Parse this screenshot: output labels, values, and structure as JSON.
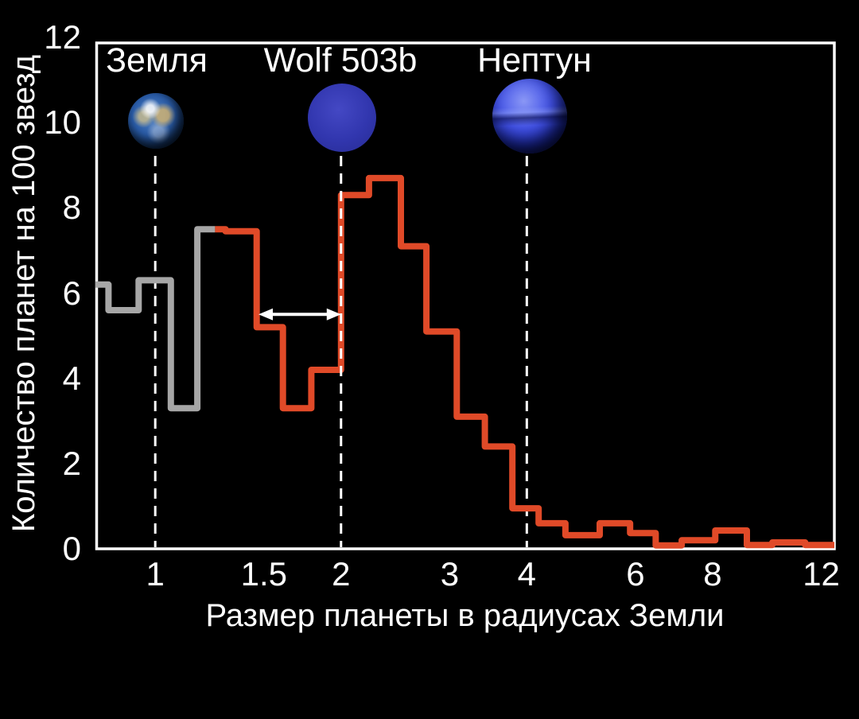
{
  "figure_background": "#000000",
  "chart_data": {
    "type": "bar",
    "subtype": "step-histogram",
    "xlabel": "Размер планеты в радиусах Земли",
    "ylabel": "Количество планет на 100 звезд",
    "xscale": "log",
    "xlim": [
      0.8,
      12.6
    ],
    "ylim": [
      0,
      12
    ],
    "grid": false,
    "x_tick_values": [
      1,
      1.5,
      2,
      3,
      4,
      6,
      8,
      12
    ],
    "x_tick_labels": [
      "1",
      "1.5",
      "2",
      "3",
      "4",
      "6",
      "8",
      "12"
    ],
    "y_tick_values": [
      0,
      2,
      4,
      6,
      8,
      10,
      12
    ],
    "y_tick_labels": [
      "0",
      "2",
      "4",
      "6",
      "8",
      "10",
      "12"
    ],
    "colors": {
      "small_planet_series": "#a6a6a6",
      "large_planet_series": "#e04a28",
      "axis": "#ffffff",
      "dashed_line": "#ffffff",
      "arrow": "#ffffff"
    },
    "series_split_radius": 1.25,
    "bins": [
      {
        "lo": 0.8,
        "hi": 0.84,
        "n": 6.2,
        "series": "gray"
      },
      {
        "lo": 0.84,
        "hi": 0.94,
        "n": 5.6,
        "series": "gray"
      },
      {
        "lo": 0.94,
        "hi": 1.06,
        "n": 6.3,
        "series": "gray"
      },
      {
        "lo": 1.06,
        "hi": 1.17,
        "n": 3.3,
        "series": "gray"
      },
      {
        "lo": 1.17,
        "hi": 1.25,
        "n": 7.5,
        "series": "gray"
      },
      {
        "lo": 1.25,
        "hi": 1.3,
        "n": 7.5,
        "series": "red"
      },
      {
        "lo": 1.3,
        "hi": 1.46,
        "n": 7.45,
        "series": "red"
      },
      {
        "lo": 1.46,
        "hi": 1.61,
        "n": 5.2,
        "series": "red"
      },
      {
        "lo": 1.61,
        "hi": 1.79,
        "n": 3.3,
        "series": "red"
      },
      {
        "lo": 1.79,
        "hi": 2.0,
        "n": 4.2,
        "series": "red"
      },
      {
        "lo": 2.0,
        "hi": 2.22,
        "n": 8.3,
        "series": "red"
      },
      {
        "lo": 2.22,
        "hi": 2.5,
        "n": 8.7,
        "series": "red"
      },
      {
        "lo": 2.5,
        "hi": 2.75,
        "n": 7.1,
        "series": "red"
      },
      {
        "lo": 2.75,
        "hi": 3.08,
        "n": 5.1,
        "series": "red"
      },
      {
        "lo": 3.08,
        "hi": 3.42,
        "n": 3.1,
        "series": "red"
      },
      {
        "lo": 3.42,
        "hi": 3.79,
        "n": 2.4,
        "series": "red"
      },
      {
        "lo": 3.79,
        "hi": 4.18,
        "n": 0.95,
        "series": "red"
      },
      {
        "lo": 4.18,
        "hi": 4.62,
        "n": 0.6,
        "series": "red"
      },
      {
        "lo": 4.62,
        "hi": 5.25,
        "n": 0.32,
        "series": "red"
      },
      {
        "lo": 5.25,
        "hi": 5.88,
        "n": 0.6,
        "series": "red"
      },
      {
        "lo": 5.88,
        "hi": 6.47,
        "n": 0.37,
        "series": "red"
      },
      {
        "lo": 6.47,
        "hi": 7.13,
        "n": 0.08,
        "series": "red"
      },
      {
        "lo": 7.13,
        "hi": 8.08,
        "n": 0.2,
        "series": "red"
      },
      {
        "lo": 8.08,
        "hi": 9.09,
        "n": 0.43,
        "series": "red"
      },
      {
        "lo": 9.09,
        "hi": 10.0,
        "n": 0.09,
        "series": "red"
      },
      {
        "lo": 10.0,
        "hi": 11.3,
        "n": 0.15,
        "series": "red"
      },
      {
        "lo": 11.3,
        "hi": 12.6,
        "n": 0.09,
        "series": "red"
      }
    ],
    "reference_lines": [
      {
        "radius": 1,
        "label": "Земля"
      },
      {
        "radius": 2,
        "label": "Wolf 503b"
      },
      {
        "radius": 4,
        "label": "Нептун"
      }
    ],
    "gap_arrow": {
      "x_from": 1.47,
      "x_to": 2.0,
      "y": 5.5
    }
  }
}
